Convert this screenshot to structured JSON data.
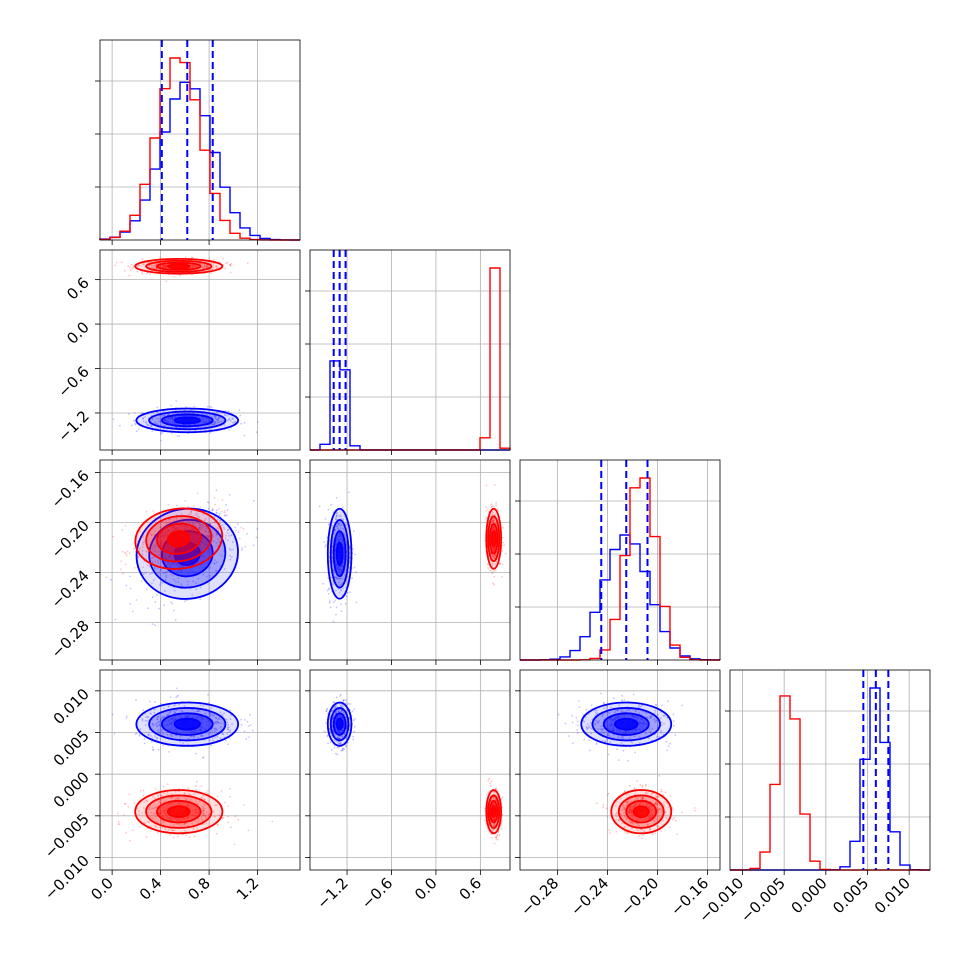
{
  "chart_data": {
    "type": "corner",
    "title": "",
    "parameters": [
      {
        "range": [
          -0.1,
          1.55
        ],
        "ticks": [
          0.0,
          0.4,
          0.8,
          1.2
        ],
        "tick_labels": [
          "0.0",
          "0.4",
          "0.8",
          "1.2"
        ]
      },
      {
        "range": [
          -1.7,
          1.0
        ],
        "ticks": [
          -1.2,
          -0.6,
          0.0,
          0.6
        ],
        "tick_labels": [
          "−1.2",
          "−0.6",
          "0.0",
          "0.6"
        ]
      },
      {
        "range": [
          -0.31,
          -0.15
        ],
        "ticks": [
          -0.28,
          -0.24,
          -0.2,
          -0.16
        ],
        "tick_labels": [
          "−0.28",
          "−0.24",
          "−0.20",
          "−0.16"
        ]
      },
      {
        "range": [
          -0.0115,
          0.0125
        ],
        "ticks": [
          -0.01,
          -0.005,
          0.0,
          0.005,
          0.01
        ],
        "tick_labels": [
          "−0.010",
          "−0.005",
          "0.000",
          "0.005",
          "0.010"
        ]
      }
    ],
    "series": [
      {
        "color": "#0000ff",
        "mean": [
          0.62,
          -1.3,
          -0.225,
          0.006
        ],
        "std": [
          0.21,
          0.08,
          0.018,
          0.0013
        ],
        "quantiles": [
          [
            0.41,
            0.62,
            0.83
          ],
          [
            -1.38,
            -1.3,
            -1.22
          ],
          [
            -0.245,
            -0.225,
            -0.208
          ],
          [
            0.0045,
            0.006,
            0.0075
          ]
        ]
      },
      {
        "color": "#ff0000",
        "mean": [
          0.55,
          0.78,
          -0.213,
          -0.0045
        ],
        "std": [
          0.18,
          0.05,
          0.012,
          0.0013
        ]
      }
    ],
    "correlations": [
      {
        "series": 0,
        "i": 2,
        "j": 0,
        "rho": 0.5
      },
      {
        "series": 1,
        "i": 2,
        "j": 0,
        "rho": 0.35
      }
    ],
    "grid": true
  }
}
